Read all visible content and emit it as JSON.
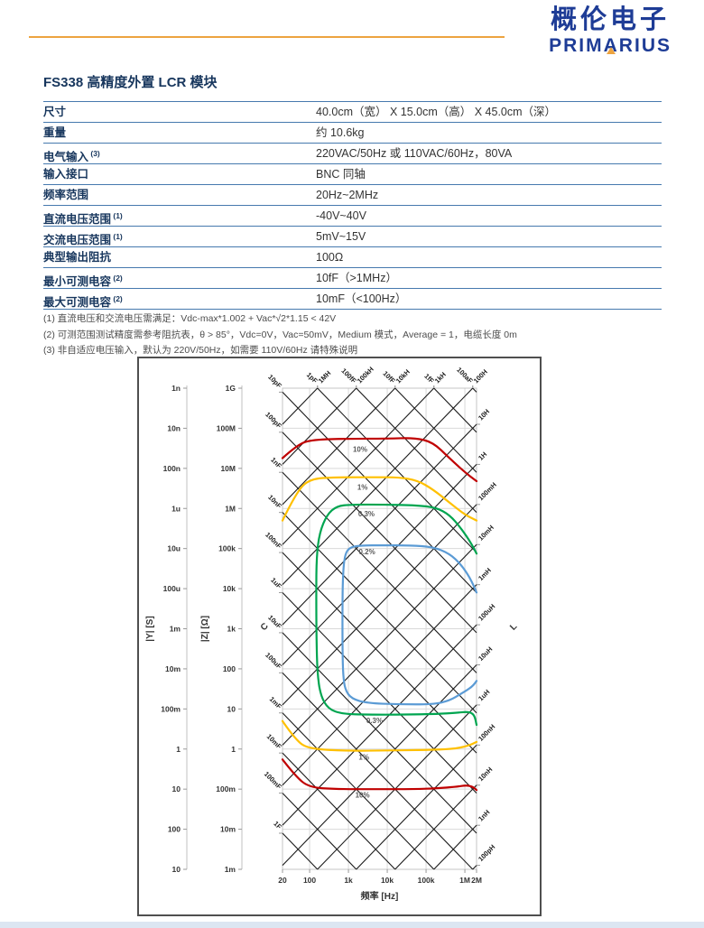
{
  "header": {
    "logo_cn": "概伦电子",
    "logo_en": "PRIMARIUS",
    "logo_color": "#1e3c96",
    "accent_color": "#eda33f"
  },
  "title": "FS338 高精度外置 LCR 模块",
  "spec_table": {
    "rows": [
      {
        "label": "尺寸",
        "sup": "",
        "value": "40.0cm（宽） X 15.0cm（高） X 45.0cm（深）"
      },
      {
        "label": "重量",
        "sup": "",
        "value": "约 10.6kg"
      },
      {
        "label": "电气输入",
        "sup": "(3)",
        "value": "220VAC/50Hz 或 110VAC/60Hz，80VA"
      },
      {
        "label": "输入接口",
        "sup": "",
        "value": "BNC 同轴"
      },
      {
        "label": "频率范围",
        "sup": "",
        "value": "20Hz~2MHz"
      },
      {
        "label": "直流电压范围",
        "sup": "(1)",
        "value": "-40V~40V"
      },
      {
        "label": "交流电压范围",
        "sup": "(1)",
        "value": "5mV~15V"
      },
      {
        "label": "典型输出阻抗",
        "sup": "",
        "value": "100Ω"
      },
      {
        "label": "最小可测电容",
        "sup": "(2)",
        "value": "10fF（>1MHz）"
      },
      {
        "label": "最大可测电容",
        "sup": "(2)",
        "value": "10mF（<100Hz）"
      }
    ]
  },
  "footnotes": [
    "(1) 直流电压和交流电压需满足：Vdc-max*1.002 + Vac*√2*1.15 < 42V",
    "(2) 可测范围测试精度需参考阻抗表，θ > 85°，Vdc=0V，Vac=50mV，Medium 模式，Average = 1，电缆长度 0m",
    "(3) 非自适应电压输入，默认为 220V/50Hz，如需要 110V/60Hz 请特殊说明"
  ],
  "chart_data": {
    "type": "line",
    "title": "",
    "xlabel": "频率  [Hz]",
    "x_range_hz": [
      20,
      2000000
    ],
    "z_range_ohm": [
      0.001,
      1000000000
    ],
    "x_ticks": [
      {
        "label": "20",
        "hz": 20
      },
      {
        "label": "100",
        "hz": 100
      },
      {
        "label": "1k",
        "hz": 1000
      },
      {
        "label": "10k",
        "hz": 10000
      },
      {
        "label": "100k",
        "hz": 100000
      },
      {
        "label": "1M",
        "hz": 1000000
      },
      {
        "label": "2M",
        "hz": 2000000
      }
    ],
    "y_axes": [
      {
        "label": "|Y| [S]",
        "ticks": [
          "1n",
          "10n",
          "100n",
          "1u",
          "10u",
          "100u",
          "1m",
          "10m",
          "100m",
          "1",
          "10",
          "100",
          "10"
        ]
      },
      {
        "label": "|Z| [Ω]",
        "ticks": [
          "1G",
          "100M",
          "10M",
          "1M",
          "100k",
          "10k",
          "1k",
          "100",
          "10",
          "1",
          "100m",
          "10m",
          "1m"
        ]
      }
    ],
    "capacitance_axis_label": "C",
    "inductance_axis_label": "L",
    "grid_on": true,
    "capacitance_lines": [
      {
        "label": "100aF",
        "farads": 1e-16
      },
      {
        "label": "1fF",
        "farads": 1e-15
      },
      {
        "label": "10fF",
        "farads": 1e-14
      },
      {
        "label": "100fF",
        "farads": 1e-13
      },
      {
        "label": "1pF",
        "farads": 1e-12
      },
      {
        "label": "10pF",
        "farads": 1e-11
      },
      {
        "label": "100pF",
        "farads": 1e-10
      },
      {
        "label": "1nF",
        "farads": 1e-09
      },
      {
        "label": "10nF",
        "farads": 1e-08
      },
      {
        "label": "100nF",
        "farads": 1e-07
      },
      {
        "label": "1uF",
        "farads": 1e-06
      },
      {
        "label": "10uF",
        "farads": 1e-05
      },
      {
        "label": "100uF",
        "farads": 0.0001
      },
      {
        "label": "1mF",
        "farads": 0.001
      },
      {
        "label": "10mF",
        "farads": 0.01
      },
      {
        "label": "100mF",
        "farads": 0.1
      },
      {
        "label": "1F",
        "farads": 1
      }
    ],
    "inductance_lines": [
      {
        "label": "1MH",
        "henries": 1000000.0
      },
      {
        "label": "100kH",
        "henries": 100000.0
      },
      {
        "label": "10kH",
        "henries": 10000.0
      },
      {
        "label": "1kH",
        "henries": 1000.0
      },
      {
        "label": "100H",
        "henries": 100
      },
      {
        "label": "10H",
        "henries": 10
      },
      {
        "label": "1H",
        "henries": 1
      },
      {
        "label": "100mH",
        "henries": 0.1
      },
      {
        "label": "10mH",
        "henries": 0.01
      },
      {
        "label": "1mH",
        "henries": 0.001
      },
      {
        "label": "100uH",
        "henries": 0.0001
      },
      {
        "label": "10uH",
        "henries": 1e-05
      },
      {
        "label": "1uH",
        "henries": 1e-06
      },
      {
        "label": "100nH",
        "henries": 1e-07
      },
      {
        "label": "10nH",
        "henries": 1e-08
      },
      {
        "label": "1nH",
        "henries": 1e-09
      },
      {
        "label": "100pH",
        "henries": 1e-10
      }
    ],
    "accuracy_contours": [
      {
        "name": "10%",
        "color": "#c00000",
        "paths": [
          [
            [
              20,
              18000000.0
            ],
            [
              50,
              40000000.0
            ],
            [
              120,
              52000000.0
            ],
            [
              1000.0,
              55000000.0
            ],
            [
              10000.0,
              55000000.0
            ],
            [
              50000.0,
              58000000.0
            ],
            [
              150000.0,
              45000000.0
            ],
            [
              400000.0,
              18000000.0
            ],
            [
              1000000.0,
              8000000.0
            ],
            [
              2000000.0,
              4800000.0
            ]
          ],
          [
            [
              20,
              0.55
            ],
            [
              45,
              0.2
            ],
            [
              100,
              0.11
            ],
            [
              500,
              0.1
            ],
            [
              5000.0,
              0.1
            ],
            [
              50000.0,
              0.1
            ],
            [
              200000.0,
              0.105
            ],
            [
              600000.0,
              0.115
            ],
            [
              1100000.0,
              0.125
            ],
            [
              1600000.0,
              0.115
            ],
            [
              2000000.0,
              0.095
            ]
          ]
        ],
        "labels": [
          {
            "text": "10%",
            "hz": 2000,
            "ohm": 30000000.0
          },
          {
            "text": "10%",
            "hz": 2300,
            "ohm": 0.072
          }
        ]
      },
      {
        "name": "1%",
        "color": "#ffc000",
        "paths": [
          [
            [
              20,
              500000.0
            ],
            [
              45,
              2500000.0
            ],
            [
              100,
              5500000.0
            ],
            [
              500,
              6000000.0
            ],
            [
              5000.0,
              6000000.0
            ],
            [
              20000.0,
              6000000.0
            ],
            [
              60000.0,
              5000000.0
            ],
            [
              150000.0,
              3000000.0
            ],
            [
              400000.0,
              1400000.0
            ],
            [
              1000000.0,
              700000.0
            ],
            [
              2000000.0,
              500000.0
            ]
          ],
          [
            [
              20,
              5.0
            ],
            [
              45,
              1.6
            ],
            [
              100,
              1.0
            ],
            [
              1000.0,
              0.9
            ],
            [
              10000.0,
              0.92
            ],
            [
              100000.0,
              0.95
            ],
            [
              500000.0,
              1.0
            ],
            [
              1200000.0,
              1.2
            ],
            [
              2000000.0,
              1.5
            ]
          ]
        ],
        "labels": [
          {
            "text": "1%",
            "hz": 2300,
            "ohm": 3400000.0
          },
          {
            "text": "1%",
            "hz": 2500,
            "ohm": 0.63
          }
        ]
      },
      {
        "name": "0.3%",
        "color": "#00a550",
        "paths": [
          [
            [
              2000000.0,
              75000.0
            ],
            [
              1500000.0,
              130000.0
            ],
            [
              800000.0,
              320000.0
            ],
            [
              400000.0,
              700000.0
            ],
            [
              180000.0,
              1050000.0
            ],
            [
              60000.0,
              1200000.0
            ],
            [
              8000.0,
              1250000.0
            ],
            [
              1200.0,
              1250000.0
            ],
            [
              500,
              1150000.0
            ],
            [
              280,
              700000.0
            ],
            [
              180,
              250000.0
            ],
            [
              150,
              60000.0
            ],
            [
              148,
              6000.0
            ],
            [
              150,
              600
            ],
            [
              158,
              80
            ],
            [
              190,
              22
            ],
            [
              300,
              10
            ],
            [
              700,
              7.5
            ],
            [
              3000.0,
              7.2
            ],
            [
              30000.0,
              7.2
            ],
            [
              200000.0,
              7.5
            ],
            [
              600000.0,
              8
            ],
            [
              1100000.0,
              8.5
            ],
            [
              1500000.0,
              8
            ],
            [
              1800000.0,
              6.5
            ],
            [
              2000000.0,
              4
            ]
          ]
        ],
        "labels": [
          {
            "text": "0.3%",
            "hz": 2900,
            "ohm": 750000.0
          },
          {
            "text": "0.3%",
            "hz": 4700,
            "ohm": 5.2
          }
        ]
      },
      {
        "name": "0.2%",
        "color": "#5b9bd5",
        "paths": [
          [
            [
              2000000.0,
              8000.0
            ],
            [
              1500000.0,
              16000.0
            ],
            [
              800000.0,
              40000.0
            ],
            [
              400000.0,
              75000.0
            ],
            [
              150000.0,
              110000.0
            ],
            [
              40000.0,
              120000.0
            ],
            [
              8000.0,
              120000.0
            ],
            [
              2000.0,
              120000.0
            ],
            [
              1000.0,
              105000.0
            ],
            [
              780,
              60000.0
            ],
            [
              710,
              15000.0
            ],
            [
              700,
              1800.0
            ],
            [
              705,
              250
            ],
            [
              730,
              70
            ],
            [
              820,
              30
            ],
            [
              1200,
              18
            ],
            [
              3000.0,
              14
            ],
            [
              20000.0,
              13
            ],
            [
              150000.0,
              13
            ],
            [
              400000.0,
              16
            ],
            [
              800000.0,
              24
            ],
            [
              1300000.0,
              32
            ],
            [
              1700000.0,
              40
            ],
            [
              2000000.0,
              50
            ]
          ]
        ],
        "labels": [
          {
            "text": "0.2%",
            "hz": 3000,
            "ohm": 85000.0
          }
        ]
      }
    ]
  }
}
